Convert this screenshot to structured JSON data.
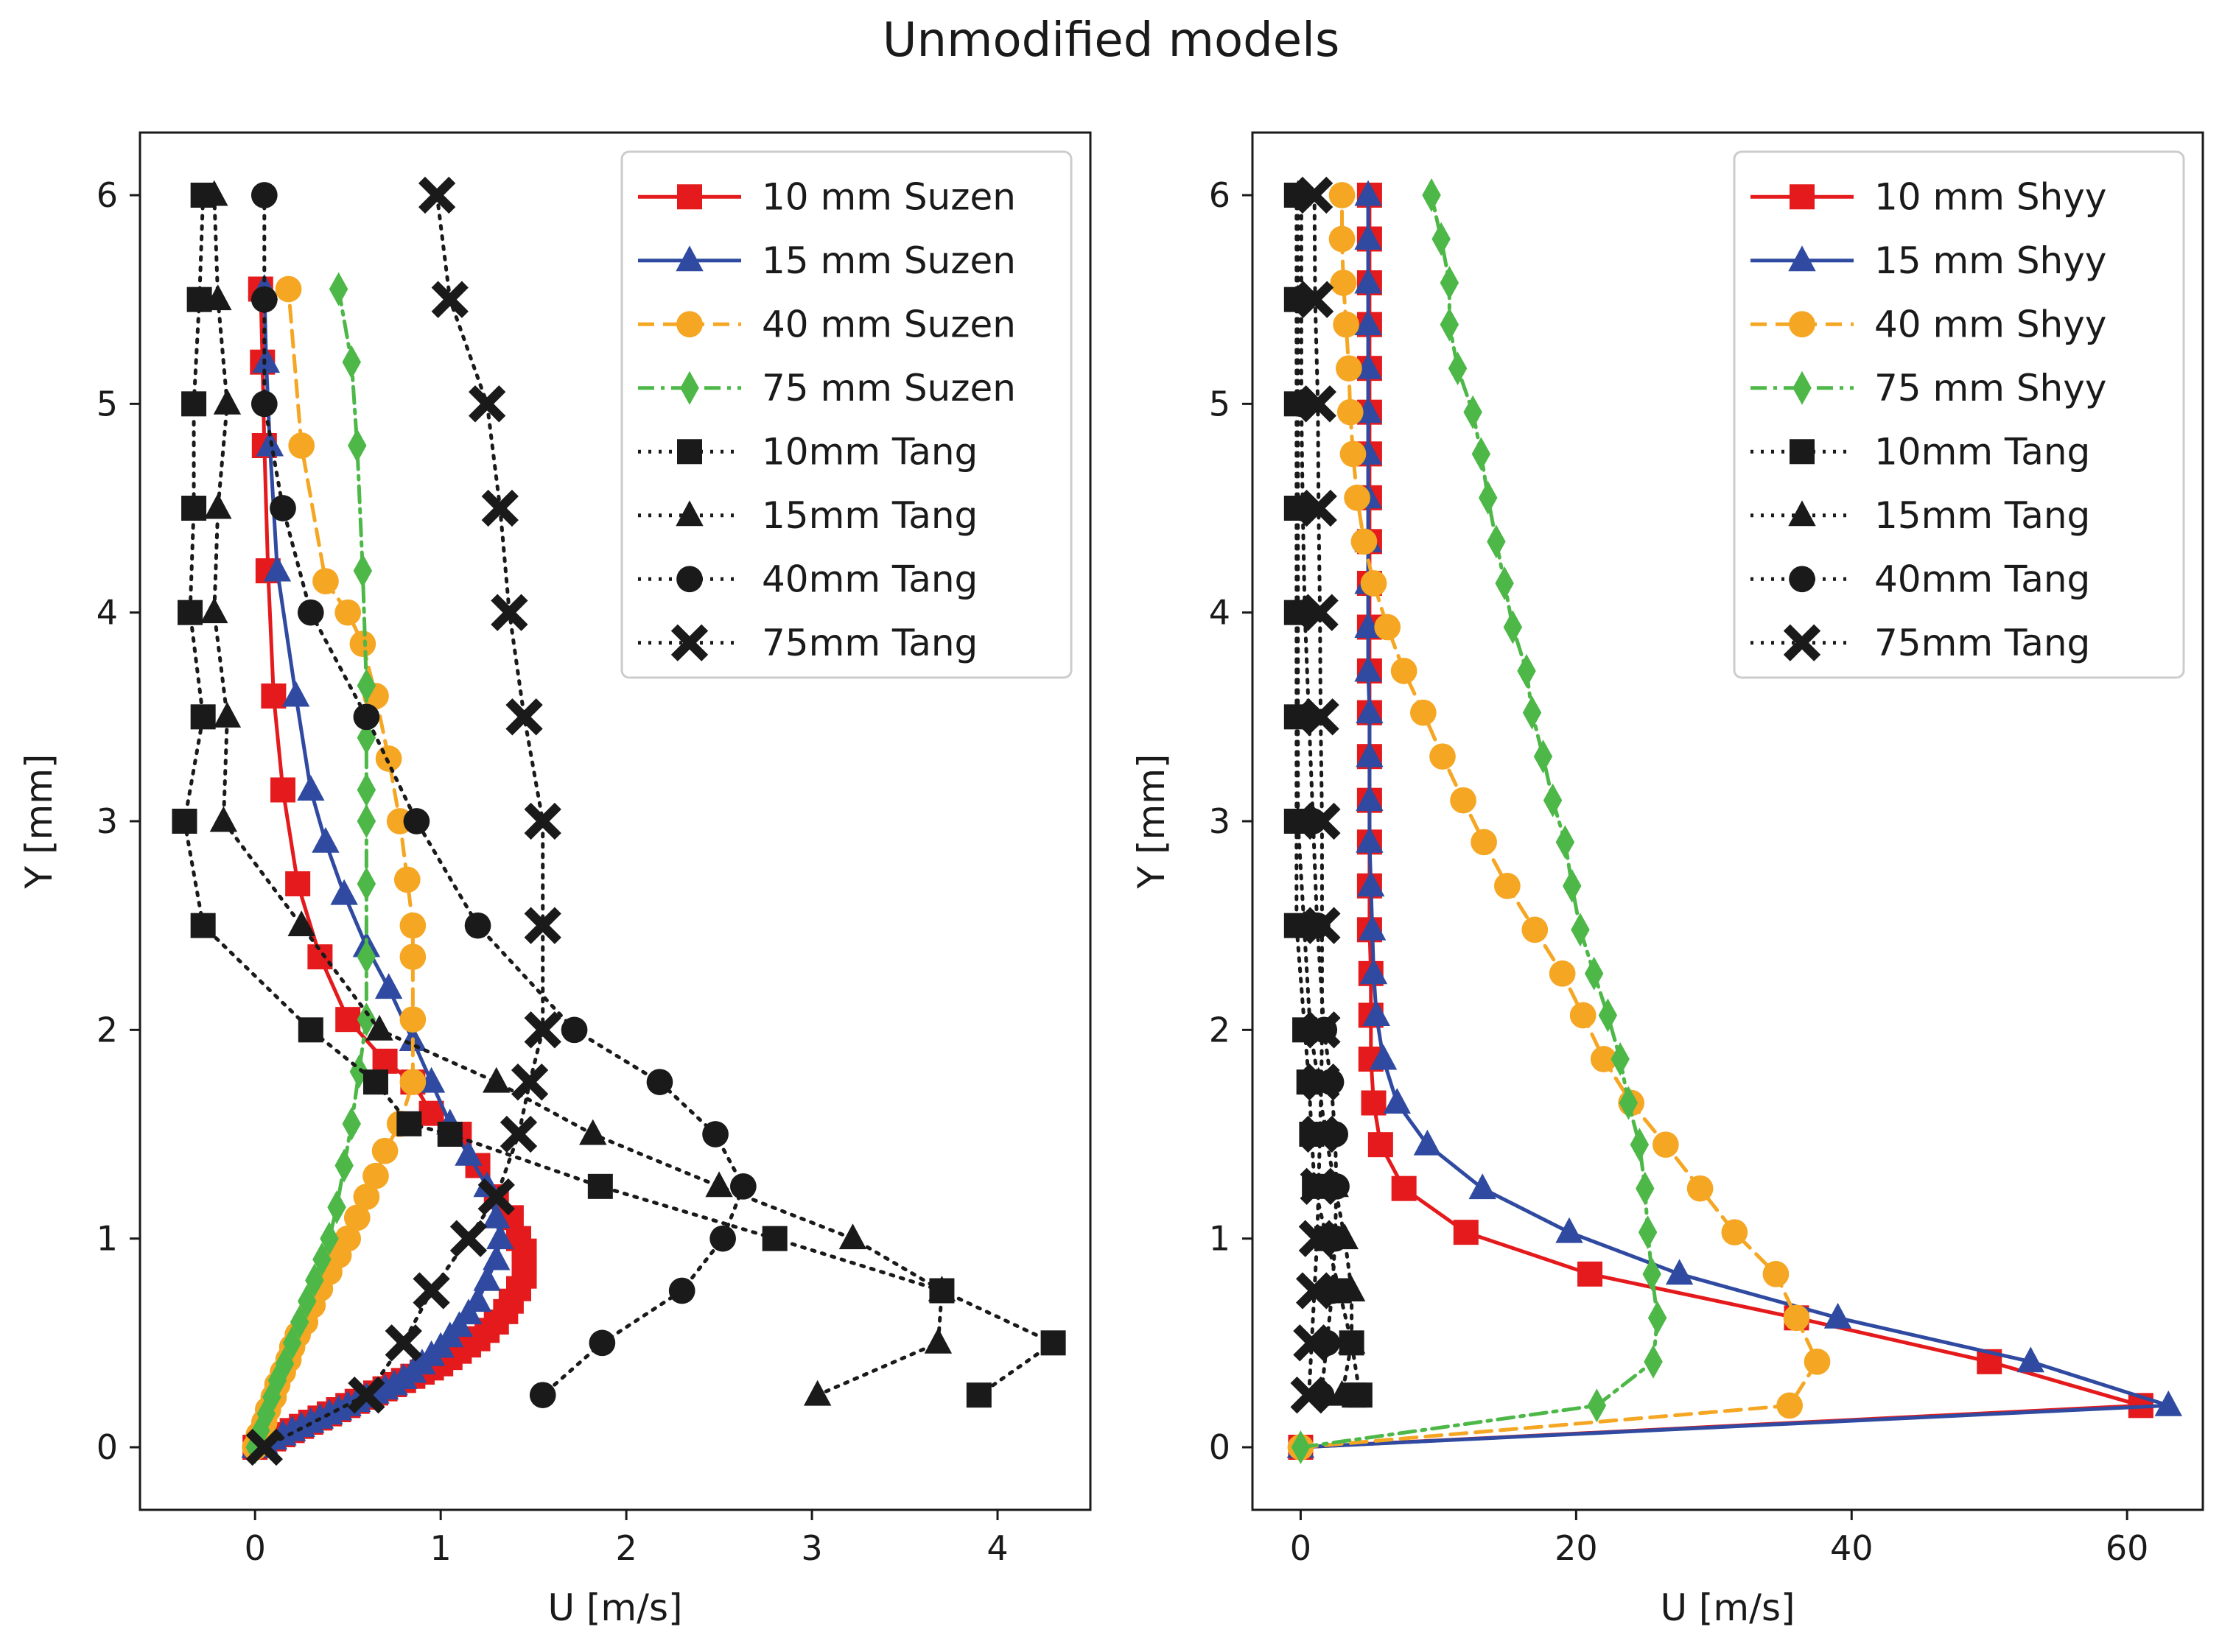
{
  "figure_title": "Unmodified models",
  "colors": {
    "red": "#e41a1c",
    "blue": "#2f4aa0",
    "orange": "#f5a623",
    "green": "#4db848",
    "black": "#1a1a1a"
  },
  "chart_data": [
    {
      "type": "line",
      "panel": "left",
      "xlabel": "U [m/s]",
      "ylabel": "Y [mm]",
      "xlim": [
        -0.62,
        4.5
      ],
      "ylim": [
        -0.3,
        6.3
      ],
      "xticks": [
        0,
        1,
        2,
        3,
        4
      ],
      "yticks": [
        0,
        1,
        2,
        3,
        4,
        5,
        6
      ],
      "legend_position": "top-right",
      "series": [
        {
          "name": "10 mm Suzen",
          "color": "red",
          "marker": "square",
          "dash": "solid",
          "x": [
            0,
            0.05,
            0.1,
            0.15,
            0.2,
            0.25,
            0.3,
            0.35,
            0.4,
            0.45,
            0.5,
            0.55,
            0.6,
            0.65,
            0.7,
            0.75,
            0.8,
            0.85,
            0.9,
            0.95,
            1.0,
            1.05,
            1.1,
            1.15,
            1.2,
            1.25,
            1.3,
            1.35,
            1.38,
            1.42,
            1.45,
            1.45,
            1.45,
            1.42,
            1.38,
            1.3,
            1.2,
            1.1,
            0.95,
            0.85,
            0.7,
            0.5,
            0.35,
            0.23,
            0.15,
            0.1,
            0.07,
            0.05,
            0.04,
            0.03
          ],
          "y": [
            0,
            0.02,
            0.04,
            0.06,
            0.08,
            0.1,
            0.12,
            0.14,
            0.16,
            0.18,
            0.2,
            0.22,
            0.24,
            0.26,
            0.28,
            0.3,
            0.32,
            0.34,
            0.36,
            0.38,
            0.4,
            0.43,
            0.46,
            0.49,
            0.52,
            0.56,
            0.6,
            0.65,
            0.7,
            0.76,
            0.82,
            0.88,
            0.94,
            1.0,
            1.1,
            1.2,
            1.35,
            1.5,
            1.6,
            1.75,
            1.85,
            2.05,
            2.35,
            2.7,
            3.15,
            3.6,
            4.2,
            4.8,
            5.2,
            5.55
          ]
        },
        {
          "name": "15 mm Suzen",
          "color": "blue",
          "marker": "triangle",
          "dash": "solid",
          "x": [
            0,
            0.05,
            0.1,
            0.15,
            0.2,
            0.25,
            0.3,
            0.35,
            0.4,
            0.45,
            0.5,
            0.55,
            0.6,
            0.65,
            0.7,
            0.75,
            0.8,
            0.85,
            0.9,
            0.95,
            1.0,
            1.05,
            1.1,
            1.15,
            1.2,
            1.25,
            1.3,
            1.32,
            1.3,
            1.25,
            1.15,
            1.05,
            0.95,
            0.85,
            0.72,
            0.6,
            0.48,
            0.38,
            0.3,
            0.22,
            0.12,
            0.08,
            0.06,
            0.05
          ],
          "y": [
            0,
            0.02,
            0.04,
            0.06,
            0.08,
            0.1,
            0.12,
            0.14,
            0.16,
            0.18,
            0.2,
            0.22,
            0.24,
            0.26,
            0.28,
            0.3,
            0.33,
            0.36,
            0.4,
            0.44,
            0.48,
            0.53,
            0.58,
            0.64,
            0.7,
            0.8,
            0.9,
            1.0,
            1.1,
            1.25,
            1.4,
            1.55,
            1.75,
            1.95,
            2.2,
            2.4,
            2.65,
            2.9,
            3.15,
            3.6,
            4.2,
            4.8,
            5.2,
            5.55
          ]
        },
        {
          "name": "40 mm Suzen",
          "color": "orange",
          "marker": "circle",
          "dash": "dashed",
          "x": [
            0,
            0.02,
            0.05,
            0.07,
            0.1,
            0.12,
            0.15,
            0.18,
            0.2,
            0.23,
            0.27,
            0.31,
            0.35,
            0.4,
            0.45,
            0.5,
            0.55,
            0.6,
            0.65,
            0.7,
            0.78,
            0.85,
            0.85,
            0.85,
            0.85,
            0.82,
            0.78,
            0.72,
            0.65,
            0.58,
            0.5,
            0.38,
            0.25,
            0.18
          ],
          "y": [
            0,
            0.06,
            0.12,
            0.18,
            0.24,
            0.3,
            0.36,
            0.42,
            0.48,
            0.54,
            0.6,
            0.68,
            0.76,
            0.84,
            0.92,
            1.0,
            1.1,
            1.2,
            1.3,
            1.42,
            1.55,
            1.75,
            2.05,
            2.35,
            2.5,
            2.72,
            3.0,
            3.3,
            3.6,
            3.85,
            4.0,
            4.15,
            4.8,
            5.55
          ]
        },
        {
          "name": "75 mm Suzen",
          "color": "green",
          "marker": "diamond",
          "dash": "dashdot",
          "x": [
            0,
            0.03,
            0.06,
            0.09,
            0.12,
            0.16,
            0.2,
            0.24,
            0.28,
            0.32,
            0.36,
            0.4,
            0.44,
            0.48,
            0.52,
            0.56,
            0.6,
            0.6,
            0.6,
            0.6,
            0.6,
            0.6,
            0.6,
            0.58,
            0.55,
            0.52,
            0.45
          ],
          "y": [
            0,
            0.08,
            0.16,
            0.24,
            0.32,
            0.4,
            0.5,
            0.6,
            0.7,
            0.8,
            0.9,
            1.0,
            1.15,
            1.35,
            1.55,
            1.8,
            2.05,
            2.35,
            2.7,
            3.0,
            3.15,
            3.4,
            3.65,
            4.2,
            4.8,
            5.2,
            5.55
          ]
        },
        {
          "name": "10mm Tang",
          "color": "black",
          "marker": "square",
          "dash": "dotted",
          "x": [
            -0.28,
            -0.3,
            -0.33,
            -0.33,
            -0.35,
            -0.28,
            -0.38,
            -0.28,
            0.3,
            0.65,
            0.83,
            1.05,
            1.86,
            2.8,
            3.7,
            4.3,
            3.9
          ],
          "y": [
            6.0,
            5.5,
            5.0,
            4.5,
            4.0,
            3.5,
            3.0,
            2.5,
            2.0,
            1.75,
            1.55,
            1.5,
            1.25,
            1.0,
            0.75,
            0.5,
            0.25
          ]
        },
        {
          "name": "15mm Tang",
          "color": "black",
          "marker": "triangle",
          "dash": "dotted",
          "x": [
            -0.22,
            -0.2,
            -0.15,
            -0.2,
            -0.22,
            -0.15,
            -0.17,
            0.25,
            0.67,
            1.3,
            1.82,
            2.5,
            3.22,
            3.7,
            3.68,
            3.03
          ],
          "y": [
            6.0,
            5.5,
            5.0,
            4.5,
            4.0,
            3.5,
            3.0,
            2.5,
            2.0,
            1.75,
            1.5,
            1.25,
            1.0,
            0.75,
            0.5,
            0.25
          ]
        },
        {
          "name": "40mm Tang",
          "color": "black",
          "marker": "circle",
          "dash": "dotted",
          "x": [
            0.05,
            0.05,
            0.05,
            0.15,
            0.3,
            0.6,
            0.87,
            1.2,
            1.72,
            2.18,
            2.48,
            2.63,
            2.52,
            2.3,
            1.87,
            1.55
          ],
          "y": [
            6.0,
            5.5,
            5.0,
            4.5,
            4.0,
            3.5,
            3.0,
            2.5,
            2.0,
            1.75,
            1.5,
            1.25,
            1.0,
            0.75,
            0.5,
            0.25
          ]
        },
        {
          "name": "75mm Tang",
          "color": "black",
          "marker": "x",
          "dash": "dotted",
          "x": [
            0.98,
            1.05,
            1.25,
            1.32,
            1.37,
            1.45,
            1.55,
            1.55,
            1.55,
            1.48,
            1.42,
            1.3,
            1.15,
            0.95,
            0.8,
            0.6,
            0.05
          ],
          "y": [
            6.0,
            5.5,
            5.0,
            4.5,
            4.0,
            3.5,
            3.0,
            2.5,
            2.0,
            1.75,
            1.5,
            1.2,
            1.0,
            0.75,
            0.5,
            0.25,
            0.0
          ]
        }
      ]
    },
    {
      "type": "line",
      "panel": "right",
      "xlabel": "U [m/s]",
      "ylabel": "Y [mm]",
      "xlim": [
        -3.5,
        65.5
      ],
      "ylim": [
        -0.3,
        6.3
      ],
      "xticks": [
        0,
        20,
        40,
        60
      ],
      "yticks": [
        0,
        1,
        2,
        3,
        4,
        5,
        6
      ],
      "legend_position": "top-right",
      "series": [
        {
          "name": "10 mm Shyy",
          "color": "red",
          "marker": "square",
          "dash": "solid",
          "x": [
            0,
            61,
            50,
            36,
            21,
            12,
            7.5,
            5.8,
            5.3,
            5.1,
            5.1,
            5.1,
            5.0,
            5.0,
            5.0,
            5.0,
            5.0,
            5.0,
            5.0,
            5.0,
            5.0,
            5.0,
            5.0,
            5.0,
            5.0,
            5.0,
            5.0,
            5.0,
            5.0,
            5.0
          ],
          "y": [
            0,
            0.2,
            0.41,
            0.62,
            0.83,
            1.03,
            1.24,
            1.45,
            1.65,
            1.86,
            2.07,
            2.27,
            2.48,
            2.69,
            2.9,
            3.1,
            3.31,
            3.52,
            3.72,
            3.93,
            4.14,
            4.34,
            4.55,
            4.76,
            4.96,
            5.17,
            5.38,
            5.58,
            5.79,
            6.0
          ]
        },
        {
          "name": "15 mm Shyy",
          "color": "blue",
          "marker": "triangle",
          "dash": "solid",
          "x": [
            0,
            63,
            53,
            39,
            27.5,
            19.5,
            13.2,
            9.2,
            7,
            6,
            5.5,
            5.3,
            5.2,
            5.1,
            5.0,
            5.0,
            5.0,
            5.0,
            4.9,
            4.9,
            4.9,
            4.9,
            4.9,
            4.9,
            4.9,
            4.9,
            4.9,
            4.9,
            4.9,
            4.9
          ],
          "y": [
            0,
            0.2,
            0.41,
            0.62,
            0.83,
            1.03,
            1.24,
            1.45,
            1.65,
            1.86,
            2.07,
            2.27,
            2.48,
            2.69,
            2.9,
            3.1,
            3.31,
            3.52,
            3.72,
            3.93,
            4.14,
            4.34,
            4.55,
            4.76,
            4.96,
            5.17,
            5.38,
            5.58,
            5.79,
            6.0
          ]
        },
        {
          "name": "40 mm Shyy",
          "color": "orange",
          "marker": "circle",
          "dash": "dashed",
          "x": [
            0,
            35.5,
            37.5,
            36,
            34.5,
            31.5,
            29,
            26.5,
            24,
            22,
            20.5,
            19,
            17,
            15,
            13.3,
            11.8,
            10.3,
            8.9,
            7.5,
            6.3,
            5.3,
            4.6,
            4.1,
            3.8,
            3.6,
            3.5,
            3.3,
            3.1,
            3.0,
            3.0
          ],
          "y": [
            0,
            0.2,
            0.41,
            0.62,
            0.83,
            1.03,
            1.24,
            1.45,
            1.65,
            1.86,
            2.07,
            2.27,
            2.48,
            2.69,
            2.9,
            3.1,
            3.31,
            3.52,
            3.72,
            3.93,
            4.14,
            4.34,
            4.55,
            4.76,
            4.96,
            5.17,
            5.38,
            5.58,
            5.79,
            6.0
          ]
        },
        {
          "name": "75 mm Shyy",
          "color": "green",
          "marker": "diamond",
          "dash": "dashdot",
          "x": [
            0,
            21.5,
            25.6,
            25.9,
            25.5,
            25.2,
            25.0,
            24.6,
            23.8,
            23.2,
            22.3,
            21.3,
            20.3,
            19.7,
            19.2,
            18.3,
            17.6,
            16.8,
            16.4,
            15.4,
            14.8,
            14.2,
            13.6,
            13.1,
            12.5,
            11.4,
            10.8,
            10.8,
            10.2,
            9.5
          ],
          "y": [
            0,
            0.2,
            0.41,
            0.62,
            0.83,
            1.03,
            1.24,
            1.45,
            1.65,
            1.86,
            2.07,
            2.27,
            2.48,
            2.69,
            2.9,
            3.1,
            3.31,
            3.52,
            3.72,
            3.93,
            4.14,
            4.34,
            4.55,
            4.76,
            4.96,
            5.17,
            5.38,
            5.58,
            5.79,
            6.0
          ]
        },
        {
          "name": "10mm Tang",
          "color": "black",
          "marker": "square",
          "dash": "dotted",
          "x": [
            -0.3,
            -0.3,
            -0.3,
            -0.3,
            -0.3,
            -0.3,
            -0.3,
            -0.3,
            0.3,
            0.6,
            0.8,
            1.0,
            1.9,
            2.8,
            3.7,
            4.3,
            3.9
          ],
          "y": [
            6.0,
            5.5,
            5.0,
            4.5,
            4.0,
            3.5,
            3.0,
            2.5,
            2.0,
            1.75,
            1.5,
            1.25,
            1.0,
            0.75,
            0.5,
            0.25,
            0.25
          ]
        },
        {
          "name": "15mm Tang",
          "color": "black",
          "marker": "triangle",
          "dash": "dotted",
          "x": [
            -0.2,
            -0.2,
            -0.2,
            -0.2,
            -0.2,
            -0.2,
            -0.2,
            0.25,
            0.7,
            1.3,
            1.8,
            2.5,
            3.2,
            3.7,
            3.7,
            3.0
          ],
          "y": [
            6.0,
            5.5,
            5.0,
            4.5,
            4.0,
            3.5,
            3.0,
            2.5,
            2.0,
            1.75,
            1.5,
            1.25,
            1.0,
            0.75,
            0.5,
            0.25
          ]
        },
        {
          "name": "40mm Tang",
          "color": "black",
          "marker": "circle",
          "dash": "dotted",
          "x": [
            0.05,
            0.05,
            0.05,
            0.15,
            0.3,
            0.6,
            0.9,
            1.2,
            1.7,
            2.2,
            2.5,
            2.6,
            2.5,
            2.3,
            1.9,
            1.5
          ],
          "y": [
            6.0,
            5.5,
            5.0,
            4.5,
            4.0,
            3.5,
            3.0,
            2.5,
            2.0,
            1.75,
            1.5,
            1.25,
            1.0,
            0.75,
            0.5,
            0.25
          ]
        },
        {
          "name": "75mm Tang",
          "color": "black",
          "marker": "x",
          "dash": "dotted",
          "x": [
            1.0,
            1.05,
            1.25,
            1.3,
            1.4,
            1.45,
            1.55,
            1.55,
            1.55,
            1.5,
            1.4,
            1.3,
            1.2,
            1.0,
            0.8,
            0.6
          ],
          "y": [
            6.0,
            5.5,
            5.0,
            4.5,
            4.0,
            3.5,
            3.0,
            2.5,
            2.0,
            1.75,
            1.5,
            1.25,
            1.0,
            0.75,
            0.5,
            0.25
          ]
        }
      ]
    }
  ]
}
